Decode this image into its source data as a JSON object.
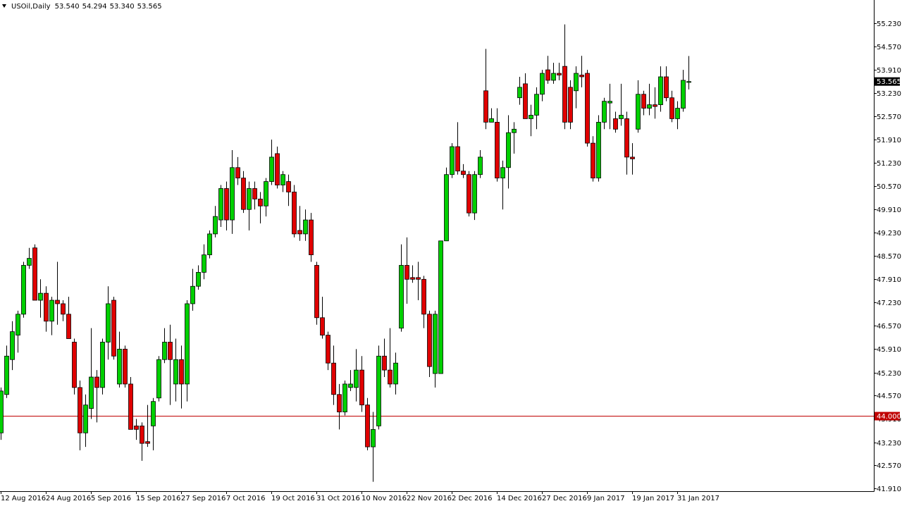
{
  "chart_data": {
    "type": "candlestick",
    "title": "USOil,Daily",
    "ohlc_labels": [
      "53.540",
      "54.294",
      "53.340",
      "53.565"
    ],
    "categories": [
      "12 Aug 2016",
      null,
      null,
      null,
      null,
      null,
      null,
      null,
      "24 Aug 2016",
      null,
      null,
      null,
      null,
      null,
      null,
      null,
      "5 Sep 2016",
      null,
      null,
      null,
      null,
      null,
      null,
      null,
      "15 Sep 2016",
      null,
      null,
      null,
      null,
      null,
      null,
      null,
      "27 Sep 2016",
      null,
      null,
      null,
      null,
      null,
      null,
      null,
      "7 Oct 2016",
      null,
      null,
      null,
      null,
      null,
      null,
      null,
      "19 Oct 2016",
      null,
      null,
      null,
      null,
      null,
      null,
      null,
      "31 Oct 2016",
      null,
      null,
      null,
      null,
      null,
      null,
      null,
      "10 Nov 2016",
      null,
      null,
      null,
      null,
      null,
      null,
      null,
      "22 Nov 2016",
      null,
      null,
      null,
      null,
      null,
      null,
      null,
      "2 Dec 2016",
      null,
      null,
      null,
      null,
      null,
      null,
      null,
      "14 Dec 2016",
      null,
      null,
      null,
      null,
      null,
      null,
      null,
      "27 Dec 2016",
      null,
      null,
      null,
      null,
      null,
      null,
      null,
      "9 Jan 2017",
      null,
      null,
      null,
      null,
      null,
      null,
      null,
      "19 Jan 2017",
      null,
      null,
      null,
      null,
      null,
      null,
      null,
      "31 Jan 2017",
      null,
      null
    ],
    "open": [
      43.5,
      44.6,
      45.6,
      46.3,
      46.9,
      48.3,
      48.8,
      47.3,
      47.5,
      46.7,
      47.3,
      47.2,
      46.9,
      46.1,
      44.8,
      43.5,
      44.2,
      45.1,
      44.8,
      46.1,
      47.3,
      44.9,
      45.9,
      44.9,
      43.7,
      43.7,
      43.25,
      43.7,
      44.5,
      45.6,
      46.1,
      44.9,
      45.6,
      44.9,
      47.2,
      47.7,
      48.1,
      48.6,
      49.2,
      49.6,
      50.5,
      49.6,
      51.1,
      50.8,
      49.9,
      50.5,
      50.2,
      50.0,
      50.7,
      51.5,
      50.6,
      50.7,
      50.4,
      49.3,
      49.2,
      49.6,
      48.3,
      46.8,
      46.3,
      45.5,
      44.6,
      44.1,
      44.8,
      44.8,
      45.3,
      44.3,
      43.1,
      43.7,
      45.7,
      45.3,
      44.9,
      46.5,
      48.3,
      47.95,
      47.95,
      47.9,
      46.9,
      45.2,
      45.2,
      49.0,
      50.9,
      51.7,
      51.0,
      50.9,
      49.8,
      50.9,
      53.3,
      52.4,
      52.4,
      50.8,
      51.1,
      52.1,
      53.1,
      53.5,
      52.5,
      52.6,
      53.2,
      53.9,
      53.6,
      53.8,
      54.0,
      53.4,
      53.3,
      53.75,
      53.8,
      51.8,
      50.8,
      52.4,
      52.95,
      52.5,
      52.5,
      52.5,
      51.4,
      52.2,
      53.2,
      52.8,
      52.9,
      52.9,
      53.7,
      53.1,
      52.5,
      52.8,
      53.54
    ],
    "high": [
      44.8,
      46.0,
      46.7,
      47.0,
      48.4,
      48.8,
      48.9,
      47.9,
      47.7,
      47.4,
      48.4,
      47.3,
      47.4,
      46.2,
      45.0,
      44.6,
      46.5,
      45.3,
      46.2,
      47.7,
      47.4,
      46.4,
      46.0,
      45.1,
      43.9,
      43.8,
      44.3,
      44.5,
      45.7,
      46.5,
      46.6,
      46.2,
      46.0,
      47.3,
      48.2,
      48.3,
      48.9,
      49.3,
      50.0,
      50.6,
      50.7,
      51.6,
      51.4,
      51.0,
      50.7,
      50.7,
      50.4,
      50.8,
      51.9,
      51.7,
      51.0,
      50.9,
      50.6,
      50.0,
      49.9,
      49.8,
      48.4,
      47.4,
      46.4,
      46.0,
      44.9,
      45.0,
      45.3,
      45.9,
      45.7,
      44.5,
      44.1,
      46.0,
      46.2,
      46.5,
      45.8,
      48.9,
      49.1,
      48.3,
      48.4,
      48.0,
      47.0,
      47.0,
      49.0,
      51.1,
      51.8,
      52.4,
      51.2,
      51.0,
      51.0,
      51.6,
      54.5,
      52.8,
      52.8,
      51.3,
      52.6,
      52.4,
      53.7,
      53.8,
      52.9,
      53.4,
      53.9,
      54.3,
      54.1,
      54.1,
      55.2,
      53.6,
      54.0,
      54.3,
      53.9,
      52.0,
      52.6,
      53.1,
      53.5,
      52.7,
      53.5,
      52.7,
      51.8,
      53.6,
      53.3,
      53.5,
      53.4,
      54.0,
      54.0,
      53.3,
      53.0,
      53.9,
      54.294
    ],
    "low": [
      43.3,
      44.5,
      45.3,
      45.8,
      46.8,
      48.2,
      47.3,
      46.8,
      46.4,
      46.3,
      46.6,
      46.7,
      46.2,
      44.6,
      43.0,
      43.1,
      43.9,
      43.8,
      44.6,
      45.6,
      45.6,
      44.8,
      44.8,
      43.6,
      43.3,
      42.7,
      43.1,
      43.0,
      44.4,
      45.5,
      44.3,
      44.4,
      44.2,
      44.4,
      47.0,
      47.6,
      47.9,
      48.5,
      49.1,
      49.4,
      49.3,
      49.2,
      50.6,
      49.8,
      49.3,
      49.9,
      49.5,
      49.7,
      50.6,
      50.5,
      50.4,
      50.0,
      49.1,
      49.0,
      49.0,
      48.4,
      46.6,
      46.2,
      45.3,
      44.3,
      43.6,
      44.0,
      44.7,
      44.4,
      44.1,
      43.0,
      42.1,
      43.6,
      45.1,
      44.8,
      44.6,
      46.4,
      47.2,
      47.8,
      47.3,
      46.5,
      45.1,
      44.8,
      45.2,
      49.0,
      50.8,
      50.9,
      50.8,
      49.7,
      49.6,
      50.8,
      52.2,
      52.4,
      50.7,
      49.9,
      50.5,
      51.5,
      52.9,
      52.5,
      52.0,
      52.2,
      53.0,
      53.5,
      53.5,
      53.6,
      52.2,
      52.2,
      52.8,
      53.4,
      51.7,
      50.7,
      50.7,
      52.2,
      52.2,
      52.1,
      52.3,
      50.9,
      50.9,
      52.1,
      52.6,
      52.6,
      52.5,
      52.7,
      53.0,
      52.4,
      52.2,
      52.7,
      53.34
    ],
    "close": [
      44.7,
      45.7,
      46.4,
      46.9,
      48.3,
      48.5,
      47.3,
      47.5,
      46.7,
      47.3,
      47.2,
      46.9,
      46.2,
      44.8,
      43.5,
      44.3,
      45.1,
      44.8,
      46.1,
      47.2,
      45.7,
      45.9,
      44.9,
      43.6,
      43.6,
      43.2,
      43.2,
      44.4,
      45.6,
      46.1,
      45.6,
      45.6,
      44.9,
      47.2,
      47.7,
      48.1,
      48.6,
      49.2,
      49.7,
      50.5,
      49.6,
      51.1,
      50.8,
      49.9,
      50.5,
      50.2,
      50.0,
      50.7,
      51.4,
      50.6,
      50.9,
      50.4,
      49.2,
      49.2,
      49.6,
      48.6,
      46.8,
      46.3,
      45.5,
      44.6,
      44.1,
      44.9,
      44.9,
      45.3,
      44.3,
      43.1,
      43.6,
      45.7,
      45.3,
      44.9,
      45.5,
      48.3,
      47.9,
      47.9,
      47.9,
      46.9,
      45.4,
      46.9,
      49.0,
      50.9,
      51.7,
      51.0,
      50.9,
      49.8,
      50.9,
      51.4,
      52.4,
      52.5,
      50.8,
      51.1,
      52.1,
      52.2,
      53.4,
      52.5,
      52.6,
      53.2,
      53.8,
      53.6,
      53.8,
      53.75,
      52.4,
      52.4,
      53.8,
      53.7,
      51.8,
      50.8,
      52.4,
      53.0,
      53.0,
      52.2,
      52.6,
      51.4,
      51.35,
      53.2,
      52.8,
      52.9,
      52.85,
      53.7,
      53.1,
      52.5,
      52.8,
      53.6,
      53.565
    ],
    "up_color": "#00d000",
    "down_color": "#e00000",
    "ylim": [
      41.83,
      55.9
    ],
    "yticks": [
      {
        "value": 55.23,
        "label": "55.230"
      },
      {
        "value": 54.57,
        "label": "54.570"
      },
      {
        "value": 53.91,
        "label": "53.910"
      },
      {
        "value": 53.23,
        "label": "53.230"
      },
      {
        "value": 52.57,
        "label": "52.570"
      },
      {
        "value": 51.91,
        "label": "51.910"
      },
      {
        "value": 51.23,
        "label": "51.230"
      },
      {
        "value": 50.57,
        "label": "50.570"
      },
      {
        "value": 49.91,
        "label": "49.910"
      },
      {
        "value": 49.23,
        "label": "49.230"
      },
      {
        "value": 48.57,
        "label": "48.570"
      },
      {
        "value": 47.91,
        "label": "47.910"
      },
      {
        "value": 47.23,
        "label": "47.230"
      },
      {
        "value": 46.57,
        "label": "46.570"
      },
      {
        "value": 45.91,
        "label": "45.910"
      },
      {
        "value": 45.23,
        "label": "45.230"
      },
      {
        "value": 44.57,
        "label": "44.570"
      },
      {
        "value": 43.91,
        "label": "43.910"
      },
      {
        "value": 43.23,
        "label": "43.230"
      },
      {
        "value": 42.57,
        "label": "42.570"
      },
      {
        "value": 41.91,
        "label": "41.910"
      }
    ],
    "current_price": {
      "value": 53.565,
      "label": "53.565"
    },
    "hline": {
      "value": 44,
      "label": "44.000",
      "color": "#c00000"
    }
  }
}
